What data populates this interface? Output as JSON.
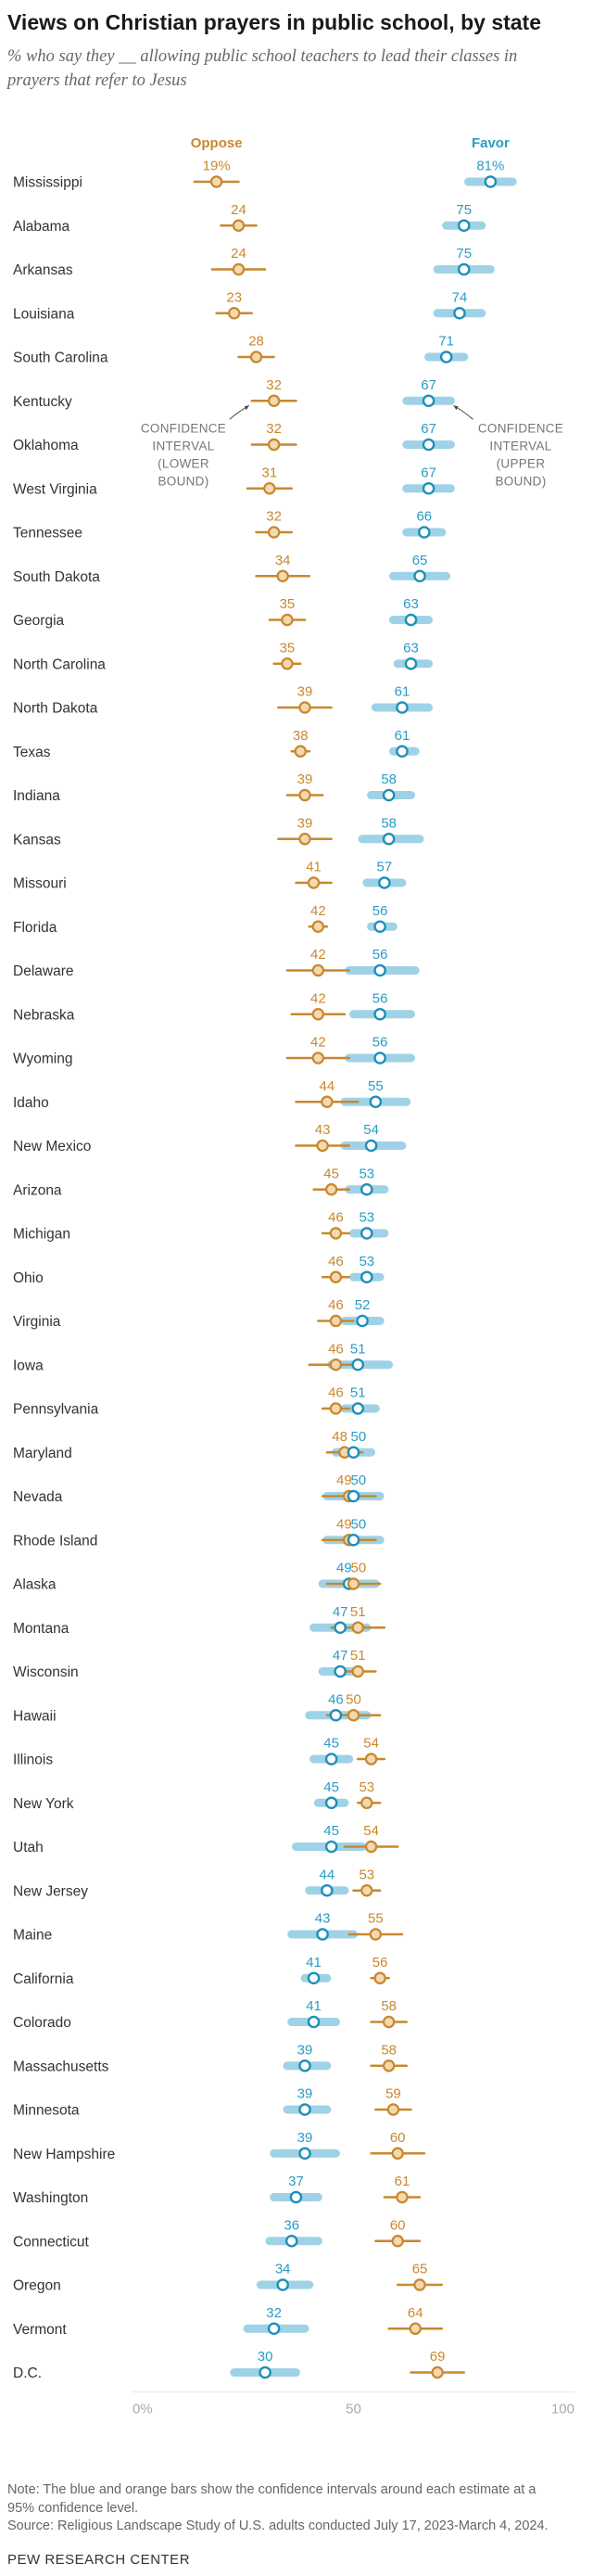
{
  "title": "Views on Christian prayers in public school, by state",
  "subtitle": "% who say they __ allowing public school teachers to lead their classes in prayers that refer to Jesus",
  "note": "Note: The blue and orange bars show the confidence intervals around each estimate at a 95% confidence level.",
  "source": "Source: Religious Landscape Study of U.S. adults conducted July 17, 2023-March 4, 2024.",
  "org": "PEW RESEARCH CENTER",
  "colors": {
    "oppose": "#c9882f",
    "favor": "#2a9cc5",
    "oppose_bar": "#c9882f",
    "favor_bar": "#9fd2e6"
  },
  "chart_data": {
    "type": "dot-interval",
    "series": [
      {
        "name": "Oppose",
        "first_label": "19%"
      },
      {
        "name": "Favor",
        "first_label": "81%"
      }
    ],
    "xlim": [
      0,
      100
    ],
    "x_ticks": [
      "0%",
      "50",
      "100"
    ],
    "annotations": [
      {
        "text": "CONFIDENCE\nINTERVAL\n(LOWER\nBOUND)",
        "series": "Oppose",
        "state": "Kentucky"
      },
      {
        "text": "CONFIDENCE\nINTERVAL\n(UPPER\nBOUND)",
        "series": "Favor",
        "state": "Kentucky"
      }
    ],
    "rows": [
      {
        "state": "Mississippi",
        "oppose": 19,
        "oppose_ci": [
          14,
          24
        ],
        "favor": 81,
        "favor_ci": [
          76,
          86
        ]
      },
      {
        "state": "Alabama",
        "oppose": 24,
        "oppose_ci": [
          20,
          28
        ],
        "favor": 75,
        "favor_ci": [
          71,
          79
        ]
      },
      {
        "state": "Arkansas",
        "oppose": 24,
        "oppose_ci": [
          18,
          30
        ],
        "favor": 75,
        "favor_ci": [
          69,
          81
        ]
      },
      {
        "state": "Louisiana",
        "oppose": 23,
        "oppose_ci": [
          19,
          27
        ],
        "favor": 74,
        "favor_ci": [
          69,
          79
        ]
      },
      {
        "state": "South Carolina",
        "oppose": 28,
        "oppose_ci": [
          24,
          32
        ],
        "favor": 71,
        "favor_ci": [
          67,
          75
        ]
      },
      {
        "state": "Kentucky",
        "oppose": 32,
        "oppose_ci": [
          27,
          37
        ],
        "favor": 67,
        "favor_ci": [
          62,
          72
        ]
      },
      {
        "state": "Oklahoma",
        "oppose": 32,
        "oppose_ci": [
          27,
          37
        ],
        "favor": 67,
        "favor_ci": [
          62,
          72
        ]
      },
      {
        "state": "West Virginia",
        "oppose": 31,
        "oppose_ci": [
          26,
          36
        ],
        "favor": 67,
        "favor_ci": [
          62,
          72
        ]
      },
      {
        "state": "Tennessee",
        "oppose": 32,
        "oppose_ci": [
          28,
          36
        ],
        "favor": 66,
        "favor_ci": [
          62,
          70
        ]
      },
      {
        "state": "South Dakota",
        "oppose": 34,
        "oppose_ci": [
          28,
          40
        ],
        "favor": 65,
        "favor_ci": [
          59,
          71
        ]
      },
      {
        "state": "Georgia",
        "oppose": 35,
        "oppose_ci": [
          31,
          39
        ],
        "favor": 63,
        "favor_ci": [
          59,
          67
        ]
      },
      {
        "state": "North Carolina",
        "oppose": 35,
        "oppose_ci": [
          32,
          38
        ],
        "favor": 63,
        "favor_ci": [
          60,
          67
        ]
      },
      {
        "state": "North Dakota",
        "oppose": 39,
        "oppose_ci": [
          33,
          45
        ],
        "favor": 61,
        "favor_ci": [
          55,
          67
        ]
      },
      {
        "state": "Texas",
        "oppose": 38,
        "oppose_ci": [
          36,
          40
        ],
        "favor": 61,
        "favor_ci": [
          59,
          64
        ]
      },
      {
        "state": "Indiana",
        "oppose": 39,
        "oppose_ci": [
          35,
          43
        ],
        "favor": 58,
        "favor_ci": [
          54,
          63
        ]
      },
      {
        "state": "Kansas",
        "oppose": 39,
        "oppose_ci": [
          33,
          45
        ],
        "favor": 58,
        "favor_ci": [
          52,
          65
        ]
      },
      {
        "state": "Missouri",
        "oppose": 41,
        "oppose_ci": [
          37,
          45
        ],
        "favor": 57,
        "favor_ci": [
          53,
          61
        ]
      },
      {
        "state": "Florida",
        "oppose": 42,
        "oppose_ci": [
          40,
          44
        ],
        "favor": 56,
        "favor_ci": [
          54,
          59
        ]
      },
      {
        "state": "Delaware",
        "oppose": 42,
        "oppose_ci": [
          35,
          49
        ],
        "favor": 56,
        "favor_ci": [
          49,
          64
        ]
      },
      {
        "state": "Nebraska",
        "oppose": 42,
        "oppose_ci": [
          36,
          48
        ],
        "favor": 56,
        "favor_ci": [
          50,
          63
        ]
      },
      {
        "state": "Wyoming",
        "oppose": 42,
        "oppose_ci": [
          35,
          49
        ],
        "favor": 56,
        "favor_ci": [
          49,
          63
        ]
      },
      {
        "state": "Idaho",
        "oppose": 44,
        "oppose_ci": [
          37,
          51
        ],
        "favor": 55,
        "favor_ci": [
          48,
          62
        ]
      },
      {
        "state": "New Mexico",
        "oppose": 43,
        "oppose_ci": [
          37,
          49
        ],
        "favor": 54,
        "favor_ci": [
          48,
          61
        ]
      },
      {
        "state": "Arizona",
        "oppose": 45,
        "oppose_ci": [
          41,
          49
        ],
        "favor": 53,
        "favor_ci": [
          49,
          57
        ]
      },
      {
        "state": "Michigan",
        "oppose": 46,
        "oppose_ci": [
          43,
          49
        ],
        "favor": 53,
        "favor_ci": [
          50,
          57
        ]
      },
      {
        "state": "Ohio",
        "oppose": 46,
        "oppose_ci": [
          43,
          49
        ],
        "favor": 53,
        "favor_ci": [
          50,
          56
        ]
      },
      {
        "state": "Virginia",
        "oppose": 46,
        "oppose_ci": [
          42,
          50
        ],
        "favor": 52,
        "favor_ci": [
          48,
          56
        ]
      },
      {
        "state": "Iowa",
        "oppose": 46,
        "oppose_ci": [
          40,
          52
        ],
        "favor": 51,
        "favor_ci": [
          45,
          58
        ]
      },
      {
        "state": "Pennsylvania",
        "oppose": 46,
        "oppose_ci": [
          43,
          49
        ],
        "favor": 51,
        "favor_ci": [
          48,
          55
        ]
      },
      {
        "state": "Maryland",
        "oppose": 48,
        "oppose_ci": [
          44,
          52
        ],
        "favor": 50,
        "favor_ci": [
          46,
          54
        ]
      },
      {
        "state": "Nevada",
        "oppose": 49,
        "oppose_ci": [
          43,
          55
        ],
        "favor": 50,
        "favor_ci": [
          44,
          56
        ]
      },
      {
        "state": "Rhode Island",
        "oppose": 49,
        "oppose_ci": [
          43,
          55
        ],
        "favor": 50,
        "favor_ci": [
          44,
          56
        ]
      },
      {
        "state": "Alaska",
        "oppose": 50,
        "oppose_ci": [
          44,
          56
        ],
        "favor": 49,
        "favor_ci": [
          43,
          55
        ]
      },
      {
        "state": "Montana",
        "oppose": 51,
        "oppose_ci": [
          45,
          57
        ],
        "favor": 47,
        "favor_ci": [
          41,
          53
        ]
      },
      {
        "state": "Wisconsin",
        "oppose": 51,
        "oppose_ci": [
          47,
          55
        ],
        "favor": 47,
        "favor_ci": [
          43,
          51
        ]
      },
      {
        "state": "Hawaii",
        "oppose": 50,
        "oppose_ci": [
          44,
          56
        ],
        "favor": 46,
        "favor_ci": [
          40,
          53
        ]
      },
      {
        "state": "Illinois",
        "oppose": 54,
        "oppose_ci": [
          51,
          57
        ],
        "favor": 45,
        "favor_ci": [
          41,
          49
        ]
      },
      {
        "state": "New York",
        "oppose": 53,
        "oppose_ci": [
          51,
          56
        ],
        "favor": 45,
        "favor_ci": [
          42,
          48
        ]
      },
      {
        "state": "Utah",
        "oppose": 54,
        "oppose_ci": [
          48,
          60
        ],
        "favor": 45,
        "favor_ci": [
          37,
          52
        ]
      },
      {
        "state": "New Jersey",
        "oppose": 53,
        "oppose_ci": [
          50,
          56
        ],
        "favor": 44,
        "favor_ci": [
          40,
          48
        ]
      },
      {
        "state": "Maine",
        "oppose": 55,
        "oppose_ci": [
          49,
          61
        ],
        "favor": 43,
        "favor_ci": [
          36,
          50
        ]
      },
      {
        "state": "California",
        "oppose": 56,
        "oppose_ci": [
          54,
          58
        ],
        "favor": 41,
        "favor_ci": [
          39,
          44
        ]
      },
      {
        "state": "Colorado",
        "oppose": 58,
        "oppose_ci": [
          54,
          62
        ],
        "favor": 41,
        "favor_ci": [
          36,
          46
        ]
      },
      {
        "state": "Massachusetts",
        "oppose": 58,
        "oppose_ci": [
          54,
          62
        ],
        "favor": 39,
        "favor_ci": [
          35,
          44
        ]
      },
      {
        "state": "Minnesota",
        "oppose": 59,
        "oppose_ci": [
          55,
          63
        ],
        "favor": 39,
        "favor_ci": [
          35,
          44
        ]
      },
      {
        "state": "New Hampshire",
        "oppose": 60,
        "oppose_ci": [
          54,
          66
        ],
        "favor": 39,
        "favor_ci": [
          32,
          46
        ]
      },
      {
        "state": "Washington",
        "oppose": 61,
        "oppose_ci": [
          57,
          65
        ],
        "favor": 37,
        "favor_ci": [
          32,
          42
        ]
      },
      {
        "state": "Connecticut",
        "oppose": 60,
        "oppose_ci": [
          55,
          65
        ],
        "favor": 36,
        "favor_ci": [
          31,
          42
        ]
      },
      {
        "state": "Oregon",
        "oppose": 65,
        "oppose_ci": [
          60,
          70
        ],
        "favor": 34,
        "favor_ci": [
          29,
          40
        ]
      },
      {
        "state": "Vermont",
        "oppose": 64,
        "oppose_ci": [
          58,
          70
        ],
        "favor": 32,
        "favor_ci": [
          26,
          39
        ]
      },
      {
        "state": "D.C.",
        "oppose": 69,
        "oppose_ci": [
          63,
          75
        ],
        "favor": 30,
        "favor_ci": [
          23,
          37
        ]
      }
    ]
  }
}
